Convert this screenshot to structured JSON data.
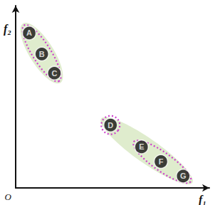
{
  "chart_data": {
    "type": "scatter",
    "x_label": "f₁",
    "y_label": "f₂",
    "origin_label": "O",
    "point_labels": [
      "A",
      "B",
      "C",
      "D",
      "E",
      "F",
      "G"
    ],
    "x": [
      0.7,
      1.35,
      2.0,
      4.9,
      6.5,
      7.5,
      8.65
    ],
    "y": [
      8.5,
      7.35,
      6.3,
      3.45,
      2.25,
      1.45,
      0.65
    ],
    "color": "#111111",
    "xlim": [
      0,
      10
    ],
    "ylim": [
      0,
      10
    ],
    "tick_labels": false,
    "grid": false,
    "groups": [
      {
        "members": [
          "A",
          "B",
          "C"
        ],
        "subgroups": [
          [
            "A",
            "B",
            "C"
          ]
        ]
      },
      {
        "members": [
          "D",
          "E",
          "F",
          "G"
        ],
        "subgroups": [
          [
            "D"
          ],
          [
            "E",
            "F",
            "G"
          ]
        ]
      }
    ]
  }
}
